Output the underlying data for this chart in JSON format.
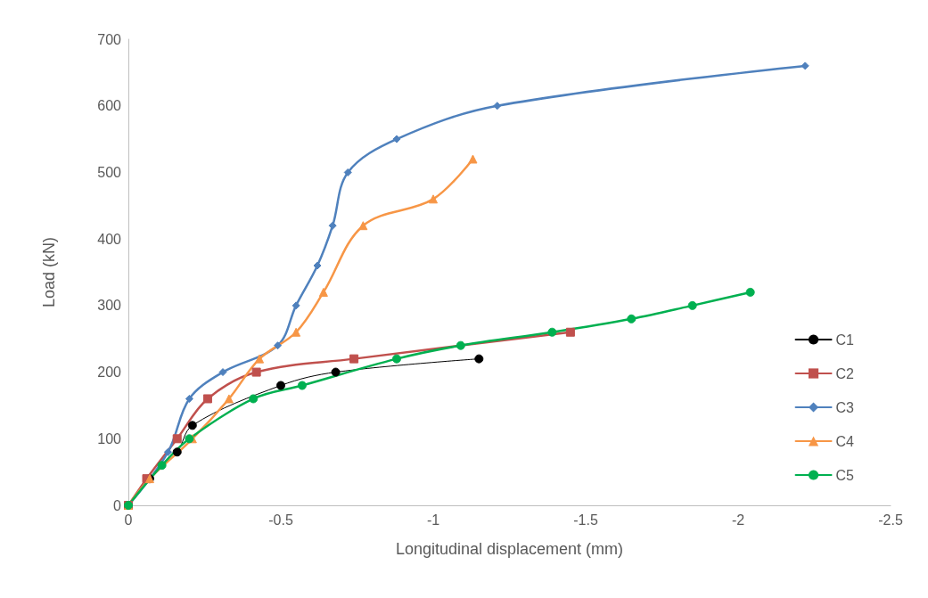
{
  "chart_data": {
    "type": "line",
    "xlabel": "Longitudinal displacement (mm)",
    "ylabel": "Load (kN)",
    "xlim": [
      0,
      -2.5
    ],
    "xticks": [
      0,
      -0.5,
      -1,
      -1.5,
      -2,
      -2.5
    ],
    "ylim": [
      0,
      700
    ],
    "yticks": [
      0,
      100,
      200,
      300,
      400,
      500,
      600,
      700
    ],
    "grid": false,
    "legend": "right",
    "series": [
      {
        "name": "C1",
        "color": "#000000",
        "marker": "circle",
        "x": [
          0,
          -0.07,
          -0.16,
          -0.21,
          -0.5,
          -0.68,
          -1.15
        ],
        "values": [
          0,
          40,
          80,
          120,
          180,
          200,
          220
        ]
      },
      {
        "name": "C2",
        "color": "#c0504d",
        "marker": "square",
        "x": [
          0,
          -0.06,
          -0.16,
          -0.26,
          -0.42,
          -0.74,
          -1.45
        ],
        "values": [
          0,
          40,
          100,
          160,
          200,
          220,
          260
        ]
      },
      {
        "name": "C3",
        "color": "#4f81bd",
        "marker": "diamond",
        "x": [
          0,
          -0.13,
          -0.2,
          -0.31,
          -0.49,
          -0.55,
          -0.62,
          -0.67,
          -0.72,
          -0.88,
          -1.21,
          -2.22
        ],
        "values": [
          0,
          80,
          160,
          200,
          240,
          300,
          360,
          420,
          500,
          550,
          600,
          660
        ]
      },
      {
        "name": "C4",
        "color": "#f79646",
        "marker": "triangle",
        "x": [
          0,
          -0.07,
          -0.21,
          -0.33,
          -0.43,
          -0.55,
          -0.64,
          -0.77,
          -1.0,
          -1.13
        ],
        "values": [
          0,
          40,
          100,
          160,
          220,
          260,
          320,
          420,
          460,
          520
        ]
      },
      {
        "name": "C5",
        "color": "#00b050",
        "marker": "circle",
        "x": [
          0,
          -0.11,
          -0.2,
          -0.41,
          -0.57,
          -0.88,
          -1.09,
          -1.39,
          -1.65,
          -1.85,
          -2.04
        ],
        "values": [
          0,
          60,
          100,
          160,
          180,
          220,
          240,
          260,
          280,
          300,
          320
        ]
      }
    ]
  }
}
